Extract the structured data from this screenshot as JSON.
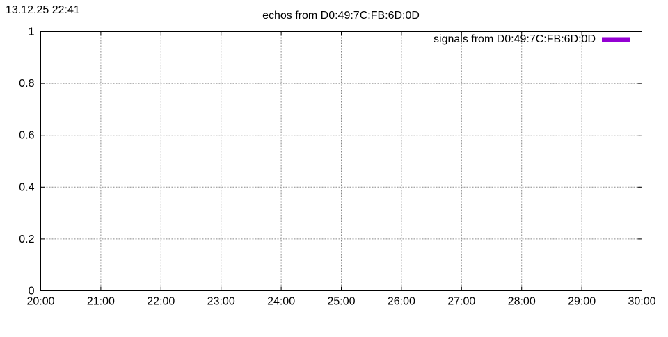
{
  "timestamp": "13.12.25 22:41",
  "chart_data": {
    "type": "line",
    "title": "echos from D0:49:7C:FB:6D:0D",
    "xlabel": "",
    "ylabel": "",
    "x_ticks": [
      "20:00",
      "21:00",
      "22:00",
      "23:00",
      "24:00",
      "25:00",
      "26:00",
      "27:00",
      "28:00",
      "29:00",
      "30:00"
    ],
    "y_ticks": [
      "0",
      "0.2",
      "0.4",
      "0.6",
      "0.8",
      "1"
    ],
    "ylim": [
      0,
      1
    ],
    "grid": true,
    "legend_position": "top-right",
    "series": [
      {
        "name": "signals from D0:49:7C:FB:6D:0D",
        "color": "#9400D3",
        "values": []
      }
    ]
  }
}
